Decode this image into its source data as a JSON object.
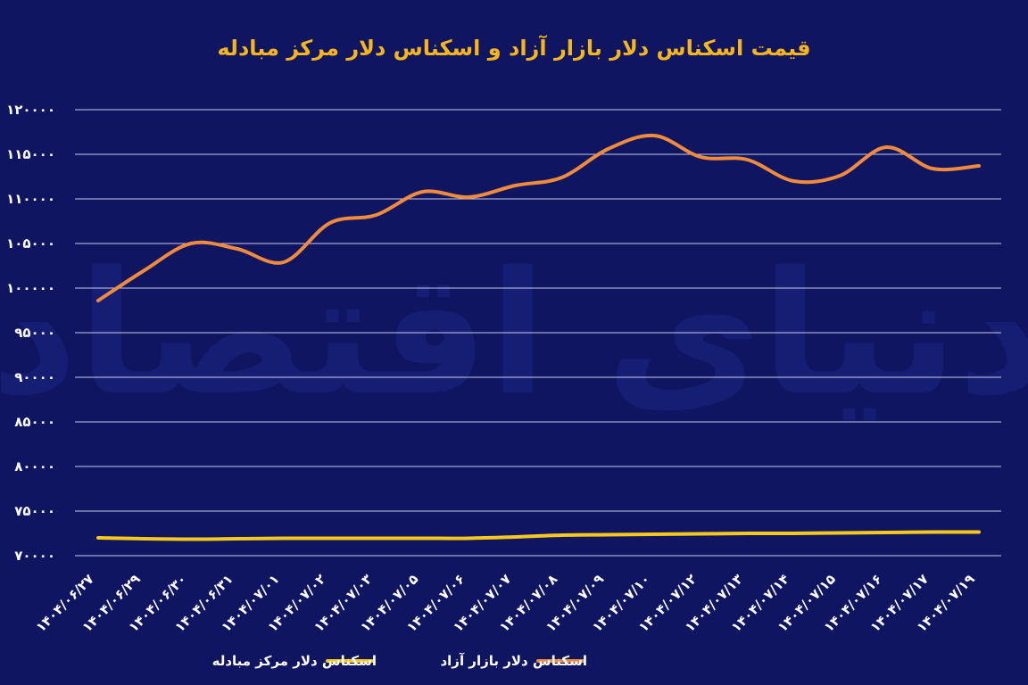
{
  "chart_data": {
    "type": "line",
    "title": "قیمت اسکناس دلار بازار آزاد و اسکناس دلار مرکز مبادله",
    "x": [
      "۱۴۰۴/۰۶/۲۷",
      "۱۴۰۴/۰۶/۲۹",
      "۱۴۰۴/۰۶/۳۰",
      "۱۴۰۴/۰۶/۳۱",
      "۱۴۰۴/۰۷/۰۱",
      "۱۴۰۴/۰۷/۰۲",
      "۱۴۰۴/۰۷/۰۳",
      "۱۴۰۴/۰۷/۰۵",
      "۱۴۰۴/۰۷/۰۶",
      "۱۴۰۴/۰۷/۰۷",
      "۱۴۰۴/۰۷/۰۸",
      "۱۴۰۴/۰۷/۰۹",
      "۱۴۰۴/۰۷/۱۰",
      "۱۴۰۴/۰۷/۱۲",
      "۱۴۰۴/۰۷/۱۳",
      "۱۴۰۴/۰۷/۱۴",
      "۱۴۰۴/۰۷/۱۵",
      "۱۴۰۴/۰۷/۱۶",
      "۱۴۰۴/۰۷/۱۷",
      "۱۴۰۴/۰۷/۱۹"
    ],
    "series": [
      {
        "name": "اسکناس دلار بازار آزاد",
        "color": "#f08a3c",
        "values": [
          98600,
          102000,
          105000,
          104400,
          102900,
          107300,
          108200,
          110800,
          110200,
          111500,
          112400,
          115600,
          117100,
          114700,
          114400,
          112000,
          112600,
          115800,
          113400,
          113700
        ]
      },
      {
        "name": "اسکناس دلار مرکز مبادله",
        "color": "#f5c81e",
        "values": [
          72000,
          71900,
          71850,
          71900,
          71950,
          71950,
          71950,
          71950,
          71950,
          72100,
          72300,
          72350,
          72400,
          72450,
          72500,
          72500,
          72550,
          72600,
          72650,
          72650
        ]
      }
    ],
    "y_ticks": [
      "۱۲۰۰۰۰",
      "۱۱۵۰۰۰",
      "۱۱۰۰۰۰",
      "۱۰۵۰۰۰",
      "۱۰۰۰۰۰",
      "۹۵۰۰۰",
      "۹۰۰۰۰",
      "۸۵۰۰۰",
      "۸۰۰۰۰",
      "۷۵۰۰۰",
      "۷۰۰۰۰"
    ],
    "ylim": [
      70000,
      120000
    ],
    "grid": true,
    "legend_position": "bottom",
    "watermark": "دنیای اقتصاد"
  }
}
